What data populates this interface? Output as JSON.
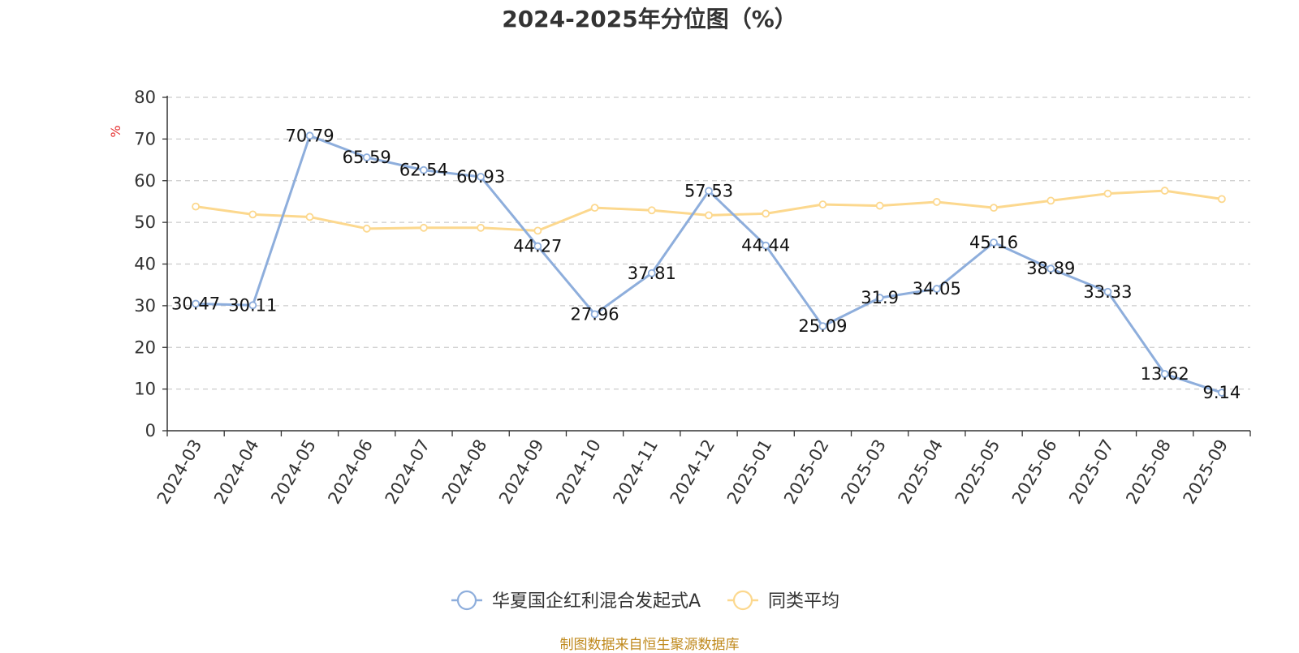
{
  "chart_data": {
    "type": "line",
    "title": "2024-2025年分位图（%）",
    "ylabel": "%",
    "ylim": [
      0,
      80
    ],
    "yticks": [
      0,
      10,
      20,
      30,
      40,
      50,
      60,
      70,
      80
    ],
    "grid": true,
    "legend_position": "bottom",
    "categories": [
      "2024-03",
      "2024-04",
      "2024-05",
      "2024-06",
      "2024-07",
      "2024-08",
      "2024-09",
      "2024-10",
      "2024-11",
      "2024-12",
      "2025-01",
      "2025-02",
      "2025-03",
      "2025-04",
      "2025-05",
      "2025-06",
      "2025-07",
      "2025-08",
      "2025-09"
    ],
    "series": [
      {
        "name": "华夏国企红利混合发起式A",
        "color": "#8eaedc",
        "show_labels": true,
        "values": [
          30.47,
          30.11,
          70.79,
          65.59,
          62.54,
          60.93,
          44.27,
          27.96,
          37.81,
          57.53,
          44.44,
          25.09,
          31.9,
          34.05,
          45.16,
          38.89,
          33.33,
          13.62,
          9.14
        ],
        "labels": [
          "30.47",
          "30.11",
          "70.79",
          "65.59",
          "62.54",
          "60.93",
          "44.27",
          "27.96",
          "37.81",
          "57.53",
          "44.44",
          "25.09",
          "31.9",
          "34.05",
          "45.16",
          "38.89",
          "33.33",
          "13.62",
          "9.14"
        ]
      },
      {
        "name": "同类平均",
        "color": "#fcd88e",
        "show_labels": false,
        "values": [
          53.8,
          51.9,
          51.3,
          48.5,
          48.7,
          48.7,
          48.0,
          53.5,
          52.9,
          51.7,
          52.1,
          54.3,
          54.0,
          54.9,
          53.5,
          55.2,
          56.9,
          57.6,
          55.6
        ]
      }
    ]
  },
  "source": "制图数据来自恒生聚源数据库"
}
